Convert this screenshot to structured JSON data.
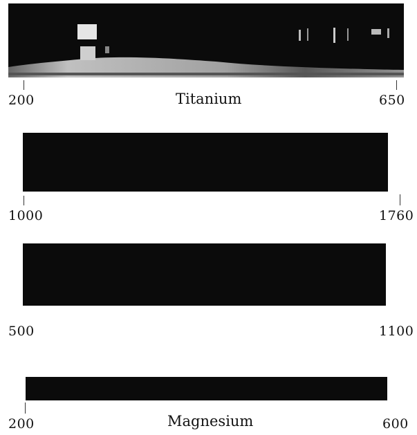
{
  "spectra": [
    {
      "element": "Titanium",
      "range_start": "200",
      "range_end": "650"
    },
    {
      "element": "",
      "range_start": "1000",
      "range_end": "1760"
    },
    {
      "element": "",
      "range_start": "500",
      "range_end": "1100"
    },
    {
      "element": "Magnesium",
      "range_start": "200",
      "range_end": "600"
    }
  ],
  "colors": {
    "plate": "#0b0b0b",
    "background": "#ffffff",
    "emission": "#d8d8d8"
  }
}
